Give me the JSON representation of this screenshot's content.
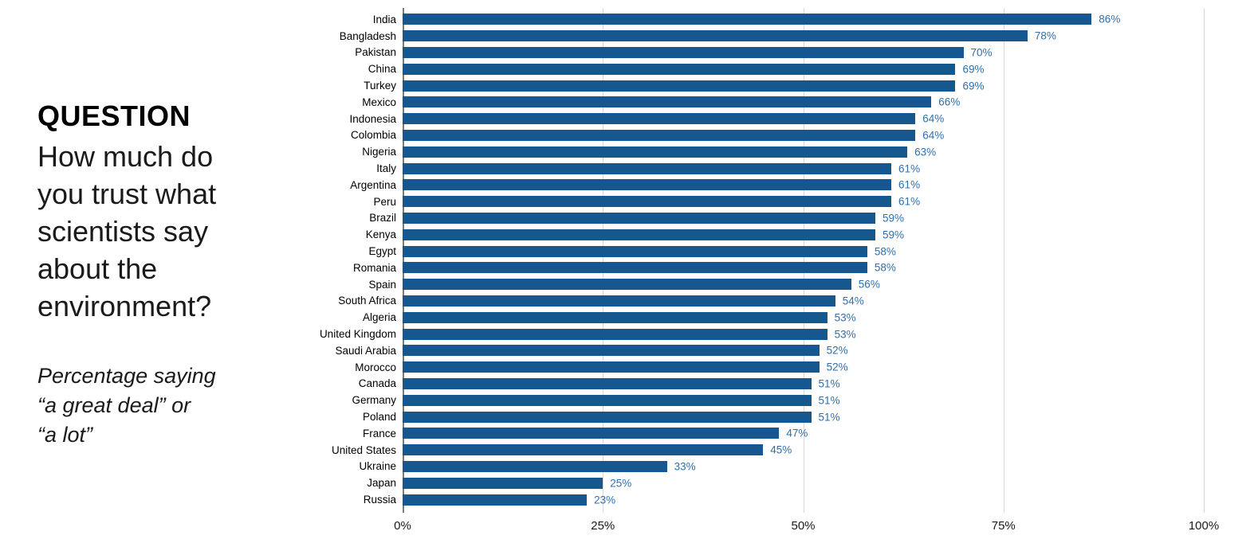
{
  "panel": {
    "heading": "QUESTION",
    "question": "How much do you trust what scientists say about the environment?",
    "note": "Percentage saying\n“a great deal” or\n“a lot”"
  },
  "chart_data": {
    "type": "bar",
    "orientation": "horizontal",
    "title": "",
    "xlabel": "",
    "ylabel": "",
    "categories": [
      "India",
      "Bangladesh",
      "Pakistan",
      "China",
      "Turkey",
      "Mexico",
      "Indonesia",
      "Colombia",
      "Nigeria",
      "Italy",
      "Argentina",
      "Peru",
      "Brazil",
      "Kenya",
      "Egypt",
      "Romania",
      "Spain",
      "South Africa",
      "Algeria",
      "United Kingdom",
      "Saudi Arabia",
      "Morocco",
      "Canada",
      "Germany",
      "Poland",
      "France",
      "United States",
      "Ukraine",
      "Japan",
      "Russia"
    ],
    "values": [
      86,
      78,
      70,
      69,
      69,
      66,
      64,
      64,
      63,
      61,
      61,
      61,
      59,
      59,
      58,
      58,
      56,
      54,
      53,
      53,
      52,
      52,
      51,
      51,
      51,
      47,
      45,
      33,
      25,
      23
    ],
    "value_suffix": "%",
    "x_ticks": [
      {
        "value": 0,
        "label": "0%"
      },
      {
        "value": 25,
        "label": "25%"
      },
      {
        "value": 50,
        "label": "50%"
      },
      {
        "value": 75,
        "label": "75%"
      },
      {
        "value": 100,
        "label": "100%"
      }
    ],
    "xlim": [
      0,
      100
    ],
    "grid": true,
    "legend": "none",
    "colors": {
      "bar": "#16578F",
      "value_label": "#2F6FAD",
      "gridline": "#D8D8D8",
      "axis_line": "#7D7D7D",
      "tick_label": "#1A1A1A",
      "category_label": "#000000"
    }
  }
}
